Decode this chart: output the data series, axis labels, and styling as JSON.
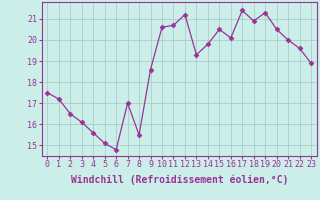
{
  "x": [
    0,
    1,
    2,
    3,
    4,
    5,
    6,
    7,
    8,
    9,
    10,
    11,
    12,
    13,
    14,
    15,
    16,
    17,
    18,
    19,
    20,
    21,
    22,
    23
  ],
  "y": [
    17.5,
    17.2,
    16.5,
    16.1,
    15.6,
    15.1,
    14.8,
    17.0,
    15.5,
    18.6,
    20.6,
    20.7,
    21.2,
    19.3,
    19.8,
    20.5,
    20.1,
    21.4,
    20.9,
    21.3,
    20.5,
    20.0,
    19.6,
    18.9
  ],
  "line_color": "#993399",
  "marker": "D",
  "marker_size": 2.5,
  "bg_color": "#cceee8",
  "grid_color": "#aacccc",
  "xlabel": "Windchill (Refroidissement éolien,°C)",
  "xlabel_fontsize": 7,
  "ylabel_ticks": [
    15,
    16,
    17,
    18,
    19,
    20,
    21
  ],
  "ylim": [
    14.5,
    21.8
  ],
  "xlim": [
    -0.5,
    23.5
  ],
  "xtick_labels": [
    "0",
    "1",
    "2",
    "3",
    "4",
    "5",
    "6",
    "7",
    "8",
    "9",
    "10",
    "11",
    "12",
    "13",
    "14",
    "15",
    "16",
    "17",
    "18",
    "19",
    "20",
    "21",
    "22",
    "23"
  ],
  "tick_fontsize": 6,
  "tick_color": "#993399",
  "label_color": "#993399",
  "spine_color": "#993399"
}
